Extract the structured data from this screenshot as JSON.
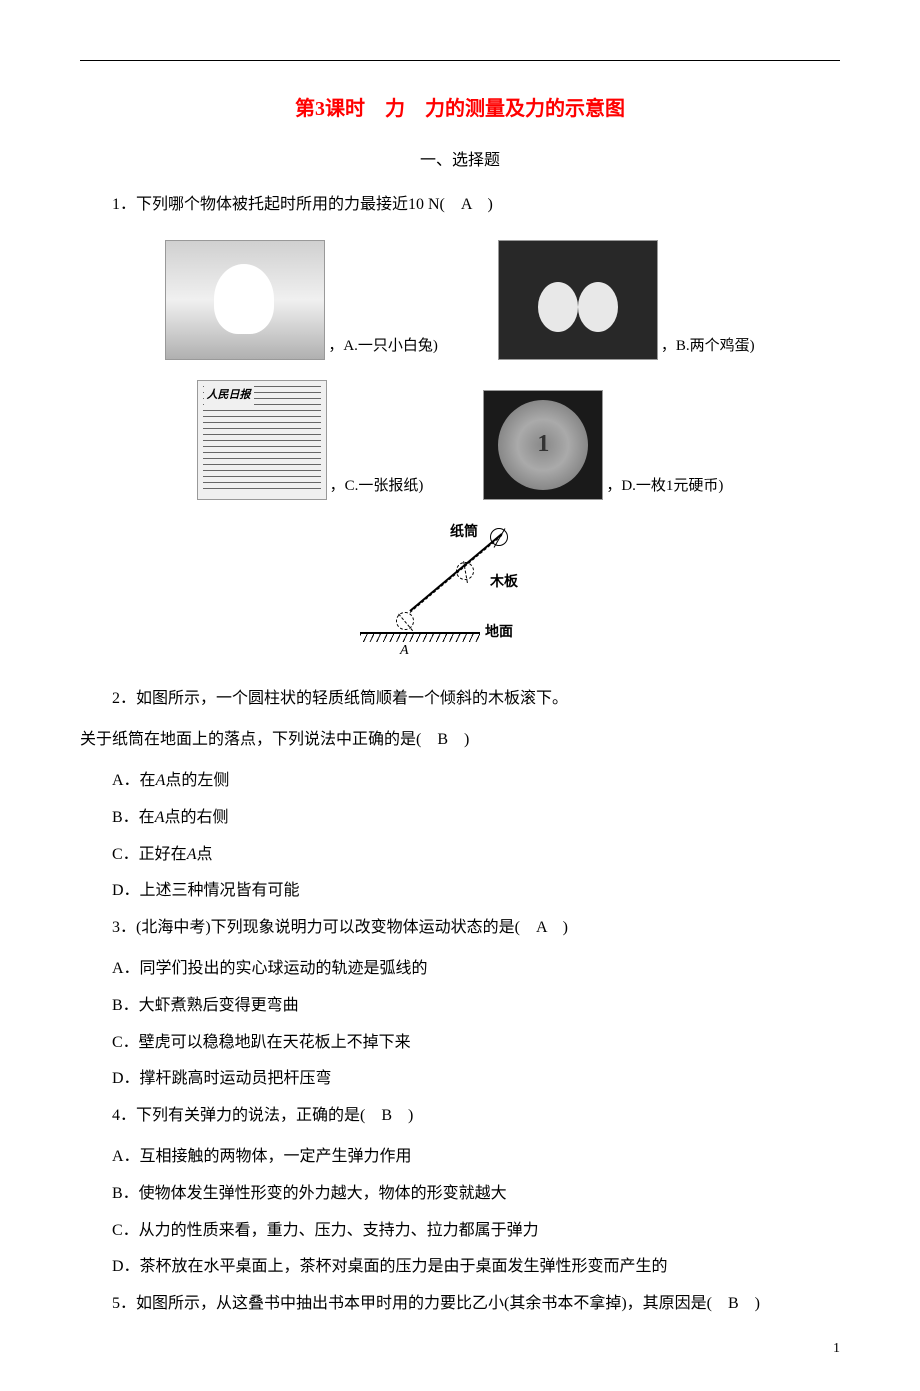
{
  "page": {
    "title": "第3课时　力　力的测量及力的示意图",
    "section": "一、选择题",
    "page_number": "1"
  },
  "q1": {
    "text": "1．下列哪个物体被托起时所用的力最接近10 N(　A　)",
    "optA": "，A.一只小白兔)",
    "optB": "，B.两个鸡蛋)",
    "optC": "，C.一张报纸)",
    "optD": "，D.一枚1元硬币)",
    "newspaper_title": "人民日报",
    "coin_num": "1"
  },
  "diagram": {
    "label_tube": "纸筒",
    "label_board": "木板",
    "label_ground": "地面",
    "label_a": "A"
  },
  "q2": {
    "text": "2．如图所示，一个圆柱状的轻质纸筒顺着一个倾斜的木板滚下。",
    "cont": "关于纸筒在地面上的落点，下列说法中正确的是(　B　)",
    "a_pre": "A．在",
    "a_var": "A",
    "a_post": "点的左侧",
    "b_pre": "B．在",
    "b_var": "A",
    "b_post": "点的右侧",
    "c_pre": "C．正好在",
    "c_var": "A",
    "c_post": "点",
    "d": "D．上述三种情况皆有可能"
  },
  "q3": {
    "text": "3．(北海中考)下列现象说明力可以改变物体运动状态的是(　A　)",
    "a": "A．同学们投出的实心球运动的轨迹是弧线的",
    "b": "B．大虾煮熟后变得更弯曲",
    "c": "C．壁虎可以稳稳地趴在天花板上不掉下来",
    "d": "D．撑杆跳高时运动员把杆压弯"
  },
  "q4": {
    "text": "4．下列有关弹力的说法，正确的是(　B　)",
    "a": "A．互相接触的两物体，一定产生弹力作用",
    "b": "B．使物体发生弹性形变的外力越大，物体的形变就越大",
    "c": "C．从力的性质来看，重力、压力、支持力、拉力都属于弹力",
    "d": "D．茶杯放在水平桌面上，茶杯对桌面的压力是由于桌面发生弹性形变而产生的"
  },
  "q5": {
    "text": "5．如图所示，从这叠书中抽出书本甲时用的力要比乙小(其余书本不拿掉)，其原因是(　B　)"
  }
}
